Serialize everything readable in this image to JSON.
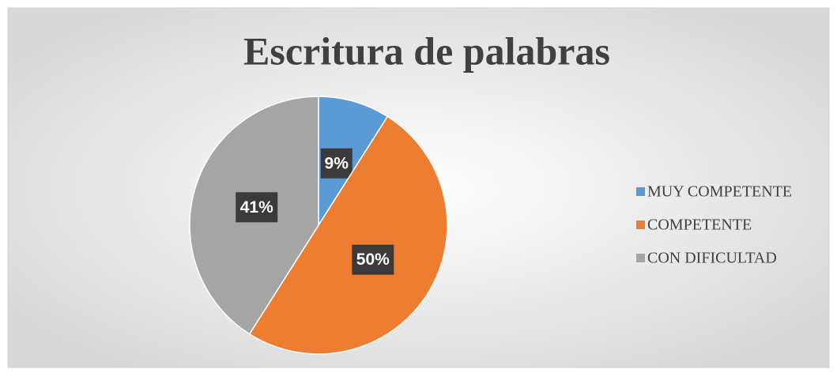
{
  "chart_data": {
    "type": "pie",
    "title": "Escritura de palabras",
    "categories": [
      "MUY COMPETENTE",
      "COMPETENTE",
      "CON DIFICULTAD"
    ],
    "values": [
      9,
      50,
      41
    ],
    "value_labels": [
      "9%",
      "50%",
      "41%"
    ],
    "colors": [
      "#5b9bd5",
      "#ed7d31",
      "#a5a5a5"
    ],
    "legend": "right"
  }
}
